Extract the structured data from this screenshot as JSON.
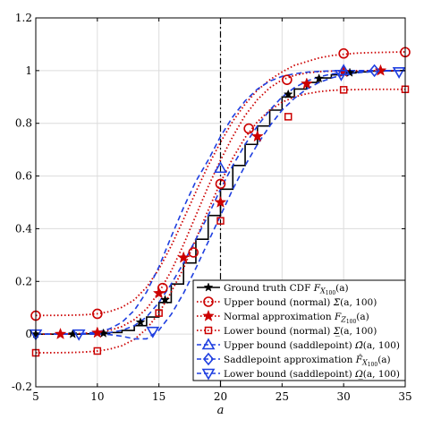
{
  "chart_data": {
    "type": "line",
    "title": "",
    "xlabel": "a",
    "ylabel": "",
    "xlim": [
      5,
      35
    ],
    "ylim": [
      -0.2,
      1.2
    ],
    "xticks": [
      "5",
      "10",
      "15",
      "20",
      "25",
      "30",
      "35"
    ],
    "yticks": [
      "-0.2",
      "0",
      "0.2",
      "0.4",
      "0.6",
      "0.8",
      "1",
      "1.2"
    ],
    "grid": true,
    "vline_x": 20,
    "legend_position": "bottom-right",
    "series": [
      {
        "name": "Ground truth CDF F_X100(a)",
        "color": "#000000",
        "style": "step-solid",
        "marker": "star-filled",
        "x": [
          5,
          6,
          7,
          8,
          9,
          10,
          11,
          12,
          13,
          14,
          15,
          16,
          17,
          18,
          19,
          20,
          21,
          22,
          23,
          24,
          25,
          26,
          27,
          28,
          29,
          30,
          31,
          32,
          33,
          34,
          35
        ],
        "values": [
          0.0,
          0.0,
          0.0,
          0.0,
          0.001,
          0.002,
          0.006,
          0.014,
          0.032,
          0.065,
          0.12,
          0.19,
          0.27,
          0.36,
          0.45,
          0.55,
          0.64,
          0.72,
          0.79,
          0.85,
          0.9,
          0.93,
          0.955,
          0.972,
          0.984,
          0.991,
          0.995,
          0.998,
          0.999,
          1.0,
          1.0
        ],
        "marker_x": [
          5,
          8,
          10.5,
          13.5,
          15.5,
          25.5,
          28,
          30.5
        ],
        "marker_values": [
          0.0,
          0.0,
          0.003,
          0.045,
          0.13,
          0.91,
          0.97,
          0.992
        ]
      },
      {
        "name": "Upper bound (normal) Σ̄(a,100)",
        "color": "#cc0000",
        "style": "dotted",
        "marker": "circle-open",
        "x": [
          5,
          6,
          7,
          8,
          9,
          10,
          11,
          12,
          13,
          14,
          15,
          16,
          17,
          18,
          19,
          20,
          21,
          22,
          23,
          24,
          25,
          26,
          27,
          28,
          29,
          30,
          31,
          32,
          33,
          34,
          35
        ],
        "values": [
          0.0708,
          0.0709,
          0.0712,
          0.0719,
          0.0735,
          0.0774,
          0.0855,
          0.102,
          0.13,
          0.178,
          0.247,
          0.335,
          0.436,
          0.54,
          0.64,
          0.728,
          0.808,
          0.873,
          0.926,
          0.965,
          0.995,
          1.02,
          1.034,
          1.048,
          1.057,
          1.062,
          1.066,
          1.068,
          1.069,
          1.07,
          1.071
        ],
        "marker_x": [
          5,
          10,
          15.3,
          17.8,
          20,
          22.3,
          25.4,
          30,
          35
        ],
        "marker_values": [
          0.07,
          0.077,
          0.175,
          0.31,
          0.57,
          0.78,
          0.965,
          1.065,
          1.07
        ]
      },
      {
        "name": "Normal approximation F_Z100(a)",
        "color": "#cc0000",
        "style": "dotted",
        "marker": "star-filled",
        "x": [
          5,
          6,
          7,
          8,
          9,
          10,
          11,
          12,
          13,
          14,
          15,
          16,
          17,
          18,
          19,
          20,
          21,
          22,
          23,
          24,
          25,
          26,
          27,
          28,
          29,
          30,
          31,
          32,
          33,
          34,
          35
        ],
        "values": [
          0.0001,
          0.0002,
          0.0005,
          0.0012,
          0.003,
          0.0066,
          0.014,
          0.029,
          0.055,
          0.096,
          0.158,
          0.24,
          0.34,
          0.45,
          0.56,
          0.66,
          0.75,
          0.83,
          0.89,
          0.935,
          0.965,
          0.982,
          0.991,
          0.996,
          0.998,
          0.999,
          1.0,
          1.0,
          1.0,
          1.0,
          1.0
        ],
        "marker_x": [
          7,
          10,
          15,
          17,
          20,
          23,
          27,
          30,
          33
        ],
        "marker_values": [
          0.0,
          0.005,
          0.155,
          0.29,
          0.5,
          0.75,
          0.95,
          0.995,
          1.0
        ]
      },
      {
        "name": "Lower bound (normal) Σ̲(a,100)",
        "color": "#cc0000",
        "style": "dotted",
        "marker": "square-open",
        "x": [
          5,
          6,
          7,
          8,
          9,
          10,
          11,
          12,
          13,
          14,
          15,
          16,
          17,
          18,
          19,
          20,
          21,
          22,
          23,
          24,
          25,
          26,
          27,
          28,
          29,
          30,
          31,
          32,
          33,
          34,
          35
        ],
        "values": [
          -0.0708,
          -0.0707,
          -0.0704,
          -0.0697,
          -0.068,
          -0.064,
          -0.057,
          -0.044,
          -0.02,
          0.02,
          0.08,
          0.16,
          0.25,
          0.36,
          0.47,
          0.575,
          0.668,
          0.746,
          0.806,
          0.85,
          0.88,
          0.9,
          0.912,
          0.92,
          0.925,
          0.927,
          0.928,
          0.929,
          0.929,
          0.929,
          0.929
        ],
        "marker_x": [
          5,
          10,
          15,
          20,
          25.5,
          30,
          35
        ],
        "marker_values": [
          -0.071,
          -0.064,
          0.08,
          0.43,
          0.825,
          0.927,
          0.929
        ]
      },
      {
        "name": "Upper bound (saddlepoint) Ω̄(a,100)",
        "color": "#1f3fe0",
        "style": "dashed",
        "marker": "triangle-up-open",
        "x": [
          5,
          6,
          7,
          8,
          9,
          10,
          11,
          12,
          13,
          14,
          15,
          16,
          17,
          18,
          19,
          20,
          21,
          22,
          23,
          24,
          25,
          26,
          27,
          28,
          29,
          30,
          31,
          32,
          33,
          34,
          35
        ],
        "values": [
          0.0,
          0.0,
          0.0,
          0.001,
          0.003,
          0.008,
          0.02,
          0.045,
          0.09,
          0.16,
          0.255,
          0.37,
          0.48,
          0.58,
          0.66,
          0.75,
          0.825,
          0.885,
          0.93,
          0.96,
          0.978,
          0.988,
          0.994,
          0.997,
          0.999,
          1.0,
          1.0,
          1.0,
          1.0,
          1.0,
          1.0
        ],
        "marker_x": [
          20,
          30
        ],
        "marker_values": [
          0.63,
          1.0
        ]
      },
      {
        "name": "Saddlepoint approximation F̂_X100(a)",
        "color": "#1f3fe0",
        "style": "dashed",
        "marker": "diamond-open",
        "x": [
          5,
          6,
          7,
          8,
          9,
          10,
          11,
          12,
          13,
          14,
          15,
          16,
          17,
          18,
          19,
          20,
          21,
          22,
          23,
          24,
          25,
          26,
          27,
          28,
          29,
          30,
          31,
          32,
          33,
          34,
          35
        ],
        "values": [
          0.0,
          0.0,
          0.0,
          0.0,
          0.001,
          0.002,
          0.006,
          0.014,
          0.032,
          0.065,
          0.12,
          0.19,
          0.27,
          0.36,
          0.45,
          0.55,
          0.64,
          0.72,
          0.79,
          0.85,
          0.9,
          0.935,
          0.96,
          0.976,
          0.987,
          0.993,
          0.996,
          0.998,
          0.999,
          1.0,
          1.0
        ],
        "marker_x": [
          32.5
        ],
        "marker_values": [
          1.0
        ]
      },
      {
        "name": "Lower bound (saddlepoint) Ω̲(a,100)",
        "color": "#1f3fe0",
        "style": "dashed",
        "marker": "triangle-down-open",
        "x": [
          5,
          6,
          7,
          8,
          9,
          10,
          11,
          12,
          13,
          14,
          15,
          16,
          17,
          18,
          19,
          20,
          21,
          22,
          23,
          24,
          25,
          26,
          27,
          28,
          29,
          30,
          31,
          32,
          33,
          34,
          35
        ],
        "values": [
          0.0,
          0.0,
          0.0,
          0.0,
          0.0,
          0.0,
          -0.002,
          -0.008,
          -0.018,
          -0.018,
          0.015,
          0.075,
          0.155,
          0.25,
          0.35,
          0.45,
          0.55,
          0.64,
          0.72,
          0.79,
          0.85,
          0.895,
          0.93,
          0.955,
          0.972,
          0.984,
          0.991,
          0.995,
          0.998,
          1.0,
          1.0
        ],
        "marker_x": [
          5,
          8.5,
          14.5,
          29.8,
          34.5
        ],
        "marker_values": [
          0.0,
          0.0,
          0.01,
          0.985,
          0.995
        ]
      }
    ],
    "legend_labels": [
      {
        "pre": "Ground truth CDF ",
        "sym": "F",
        "sub": "X",
        "subsub": "100",
        "post": "(a)"
      },
      {
        "pre": "Upper bound (normal) ",
        "sym": "Σ̄",
        "sub": "",
        "subsub": "",
        "post": "(a, 100)"
      },
      {
        "pre": "Normal approximation ",
        "sym": "F",
        "sub": "Z",
        "subsub": "100",
        "post": "(a)"
      },
      {
        "pre": "Lower bound (normal) ",
        "sym": "Σ̲",
        "sub": "",
        "subsub": "",
        "post": "(a, 100)"
      },
      {
        "pre": "Upper bound (saddlepoint) ",
        "sym": "Ω̄",
        "sub": "",
        "subsub": "",
        "post": "(a, 100)"
      },
      {
        "pre": "Saddlepoint approximation ",
        "sym": "F̂",
        "sub": "X",
        "subsub": "100",
        "post": "(a)"
      },
      {
        "pre": "Lower bound (saddlepoint) ",
        "sym": "Ω̲",
        "sub": "",
        "subsub": "",
        "post": "(a, 100)"
      }
    ]
  }
}
